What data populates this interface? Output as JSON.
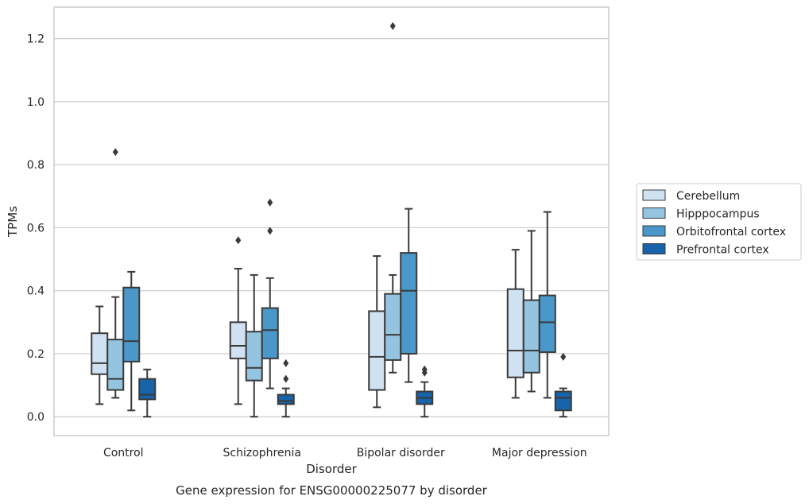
{
  "caption": "Gene expression for ENSG00000225077 by disorder",
  "colors": {
    "Cerebellum": "#d0e1f2",
    "Hipppocampus": "#94c4df",
    "Orbitofrontal cortex": "#4a98c9",
    "Prefrontal cortex": "#1764ab",
    "lines": "#3a3a3a",
    "grid": "#cccccc"
  },
  "chart_data": {
    "type": "boxplot",
    "title": "",
    "xlabel": "Disorder",
    "ylabel": "TPMs",
    "ylim": [
      -0.06,
      1.3
    ],
    "yticks": [
      "0.0",
      "0.2",
      "0.4",
      "0.6",
      "0.8",
      "1.0",
      "1.2"
    ],
    "grid": "horizontal",
    "legend_position": "right",
    "categories": [
      "Control",
      "Schizophrenia",
      "Bipolar disorder",
      "Major depression"
    ],
    "series": [
      {
        "name": "Cerebellum",
        "boxes": [
          {
            "whislo": 0.04,
            "q1": 0.135,
            "med": 0.17,
            "q3": 0.265,
            "whishi": 0.35,
            "fliers": []
          },
          {
            "whislo": 0.04,
            "q1": 0.185,
            "med": 0.225,
            "q3": 0.3,
            "whishi": 0.47,
            "fliers": [
              0.56
            ]
          },
          {
            "whislo": 0.03,
            "q1": 0.085,
            "med": 0.19,
            "q3": 0.335,
            "whishi": 0.51,
            "fliers": []
          },
          {
            "whislo": 0.06,
            "q1": 0.125,
            "med": 0.21,
            "q3": 0.405,
            "whishi": 0.53,
            "fliers": []
          }
        ]
      },
      {
        "name": "Hipppocampus",
        "boxes": [
          {
            "whislo": 0.06,
            "q1": 0.085,
            "med": 0.12,
            "q3": 0.245,
            "whishi": 0.38,
            "fliers": [
              0.84
            ]
          },
          {
            "whislo": 0.0,
            "q1": 0.115,
            "med": 0.155,
            "q3": 0.27,
            "whishi": 0.45,
            "fliers": []
          },
          {
            "whislo": 0.14,
            "q1": 0.18,
            "med": 0.26,
            "q3": 0.39,
            "whishi": 0.45,
            "fliers": [
              1.24
            ]
          },
          {
            "whislo": 0.08,
            "q1": 0.14,
            "med": 0.21,
            "q3": 0.37,
            "whishi": 0.59,
            "fliers": []
          }
        ]
      },
      {
        "name": "Orbitofrontal cortex",
        "boxes": [
          {
            "whislo": 0.02,
            "q1": 0.175,
            "med": 0.24,
            "q3": 0.41,
            "whishi": 0.46,
            "fliers": []
          },
          {
            "whislo": 0.09,
            "q1": 0.185,
            "med": 0.275,
            "q3": 0.345,
            "whishi": 0.44,
            "fliers": [
              0.59,
              0.68
            ]
          },
          {
            "whislo": 0.11,
            "q1": 0.2,
            "med": 0.4,
            "q3": 0.52,
            "whishi": 0.66,
            "fliers": []
          },
          {
            "whislo": 0.06,
            "q1": 0.205,
            "med": 0.3,
            "q3": 0.385,
            "whishi": 0.65,
            "fliers": []
          }
        ]
      },
      {
        "name": "Prefrontal cortex",
        "boxes": [
          {
            "whislo": 0.0,
            "q1": 0.055,
            "med": 0.07,
            "q3": 0.12,
            "whishi": 0.15,
            "fliers": []
          },
          {
            "whislo": 0.0,
            "q1": 0.04,
            "med": 0.05,
            "q3": 0.07,
            "whishi": 0.09,
            "fliers": [
              0.12,
              0.17
            ]
          },
          {
            "whislo": 0.0,
            "q1": 0.04,
            "med": 0.06,
            "q3": 0.08,
            "whishi": 0.11,
            "fliers": [
              0.14,
              0.15
            ]
          },
          {
            "whislo": 0.0,
            "q1": 0.02,
            "med": 0.06,
            "q3": 0.08,
            "whishi": 0.09,
            "fliers": [
              0.19
            ]
          }
        ]
      }
    ]
  }
}
